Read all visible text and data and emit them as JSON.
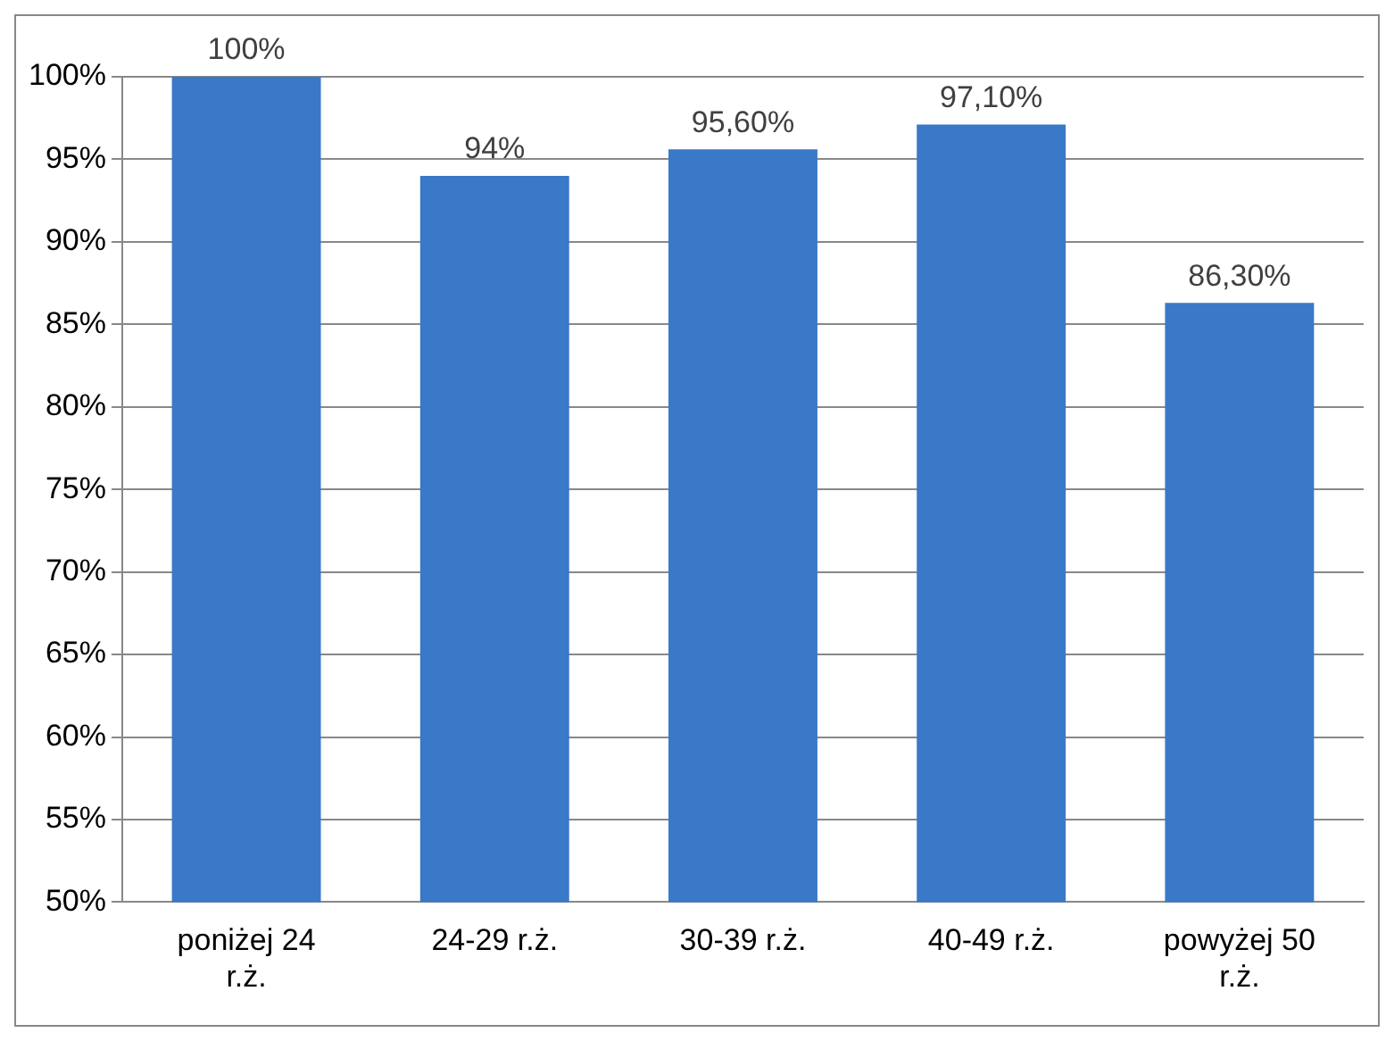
{
  "chart_data": {
    "type": "bar",
    "categories": [
      "poniżej 24 r.ż.",
      "24-29 r.ż.",
      "30-39 r.ż.",
      "40-49 r.ż.",
      "powyżej 50 r.ż."
    ],
    "values": [
      100,
      94,
      95.6,
      97.1,
      86.3
    ],
    "value_labels": [
      "100%",
      "94%",
      "95,60%",
      "97,10%",
      "86,30%"
    ],
    "color": "#3a78c8",
    "ylim": [
      50,
      100
    ],
    "yticks": [
      {
        "value": 50,
        "label": "50%"
      },
      {
        "value": 55,
        "label": "55%"
      },
      {
        "value": 60,
        "label": "60%"
      },
      {
        "value": 65,
        "label": "65%"
      },
      {
        "value": 70,
        "label": "70%"
      },
      {
        "value": 75,
        "label": "75%"
      },
      {
        "value": 80,
        "label": "80%"
      },
      {
        "value": 85,
        "label": "85%"
      },
      {
        "value": 90,
        "label": "90%"
      },
      {
        "value": 95,
        "label": "95%"
      },
      {
        "value": 100,
        "label": "100%"
      }
    ],
    "grid": "y",
    "legend": false
  }
}
